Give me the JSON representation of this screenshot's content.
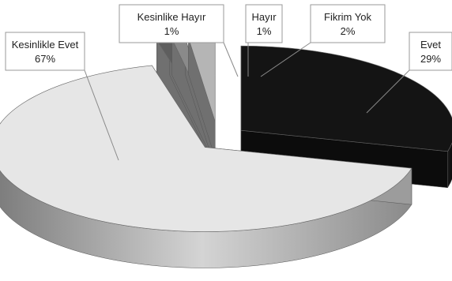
{
  "chart_data": {
    "type": "pie",
    "title": "",
    "categories": [
      "Evet",
      "Kesinlikle Evet",
      "Kesinlike Hayır",
      "Hayır",
      "Fikrim Yok"
    ],
    "values": [
      29,
      67,
      1,
      1,
      2
    ],
    "value_labels": [
      "29%",
      "67%",
      "1%",
      "1%",
      "2%"
    ],
    "colors": {
      "Evet": "#141414",
      "Kesinlikle Evet": "#e6e6e6",
      "Kesinlike Hayır": "#5e5e5e",
      "Hayır": "#8a8a8a",
      "Fikrim Yok": "#b5b5b5"
    },
    "legend": "none",
    "style": "3d-exploded"
  }
}
